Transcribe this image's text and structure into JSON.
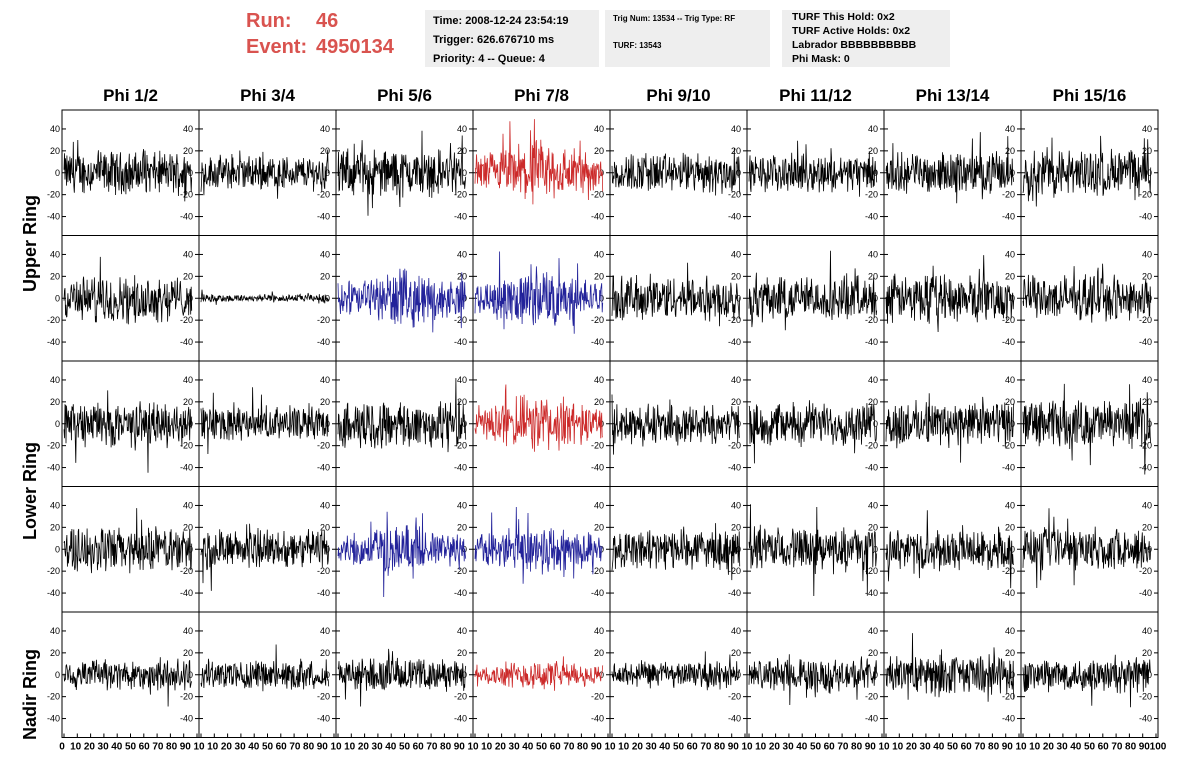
{
  "header": {
    "run_label": "Run:",
    "run_value": "46",
    "event_label": "Event:",
    "event_value": "4950134",
    "accent_color": "#d9534f"
  },
  "info_time": {
    "time": "Time: 2008-12-24 23:54:19",
    "trigger": "Trigger: 626.676710 ms",
    "priority": "Priority: 4 -- Queue: 4"
  },
  "info_trig": {
    "trig": "Trig Num: 13534 -- Trig Type: RF",
    "turf": "TURF: 13543"
  },
  "info_turf": {
    "this_hold": "TURF This Hold: 0x2",
    "active_holds": "TURF Active Holds: 0x2",
    "labrador": "Labrador BBBBBBBBBB",
    "phi_mask": "Phi Mask: 0"
  },
  "columns": [
    "Phi 1/2",
    "Phi 3/4",
    "Phi 5/6",
    "Phi 7/8",
    "Phi 9/10",
    "Phi 11/12",
    "Phi 13/14",
    "Phi 15/16"
  ],
  "ring_labels": [
    "Upper Ring",
    "Lower Ring",
    "Nadir Ring"
  ],
  "chart_data": {
    "type": "line",
    "x_ticks": [
      "0",
      "10",
      "20",
      "30",
      "40",
      "50",
      "60",
      "70",
      "80",
      "90",
      "100"
    ],
    "x_tick_labels": [
      "0",
      "10",
      "20",
      "30",
      "40",
      "50",
      "60",
      "70",
      "80",
      "90",
      "10",
      "10",
      "20",
      "30",
      "40",
      "50",
      "60",
      "70",
      "80",
      "90",
      "10",
      "10",
      "20",
      "30",
      "40",
      "50",
      "60",
      "70",
      "80",
      "90",
      "10",
      "10",
      "20",
      "30",
      "40",
      "50",
      "60",
      "70",
      "80",
      "90",
      "10",
      "10",
      "20",
      "30",
      "40",
      "50",
      "60",
      "70",
      "80",
      "90",
      "10",
      "10",
      "20",
      "30",
      "40",
      "50",
      "60",
      "70",
      "80",
      "90",
      "10",
      "10",
      "20",
      "30",
      "40",
      "50",
      "60",
      "70",
      "80",
      "90",
      "10",
      "10",
      "20",
      "30",
      "40",
      "50",
      "60",
      "70",
      "80",
      "90",
      "100"
    ],
    "xlim": [
      0,
      100
    ],
    "ylim": [
      -50,
      50
    ],
    "y_ticks": [
      "40",
      "20",
      "0",
      "-20",
      "-40"
    ],
    "colors": {
      "normal": "#000000",
      "triggered_red": "#cc2a2a",
      "triggered_blue": "#22229a"
    },
    "panel_colors": [
      [
        "black",
        "black",
        "black",
        "red",
        "black",
        "black",
        "black",
        "black"
      ],
      [
        "black",
        "black",
        "blue",
        "blue",
        "black",
        "black",
        "black",
        "black"
      ],
      [
        "black",
        "black",
        "black",
        "red",
        "black",
        "black",
        "black",
        "black"
      ],
      [
        "black",
        "black",
        "blue",
        "blue",
        "black",
        "black",
        "black",
        "black"
      ],
      [
        "black",
        "black",
        "black",
        "red",
        "black",
        "black",
        "black",
        "black"
      ]
    ],
    "panel_amplitude": [
      [
        16,
        13,
        18,
        22,
        15,
        14,
        15,
        18
      ],
      [
        17,
        3,
        19,
        20,
        17,
        17,
        18,
        17
      ],
      [
        17,
        13,
        18,
        20,
        15,
        16,
        17,
        18
      ],
      [
        17,
        15,
        17,
        18,
        15,
        16,
        15,
        16
      ],
      [
        12,
        11,
        12,
        10,
        10,
        12,
        15,
        13
      ]
    ]
  }
}
